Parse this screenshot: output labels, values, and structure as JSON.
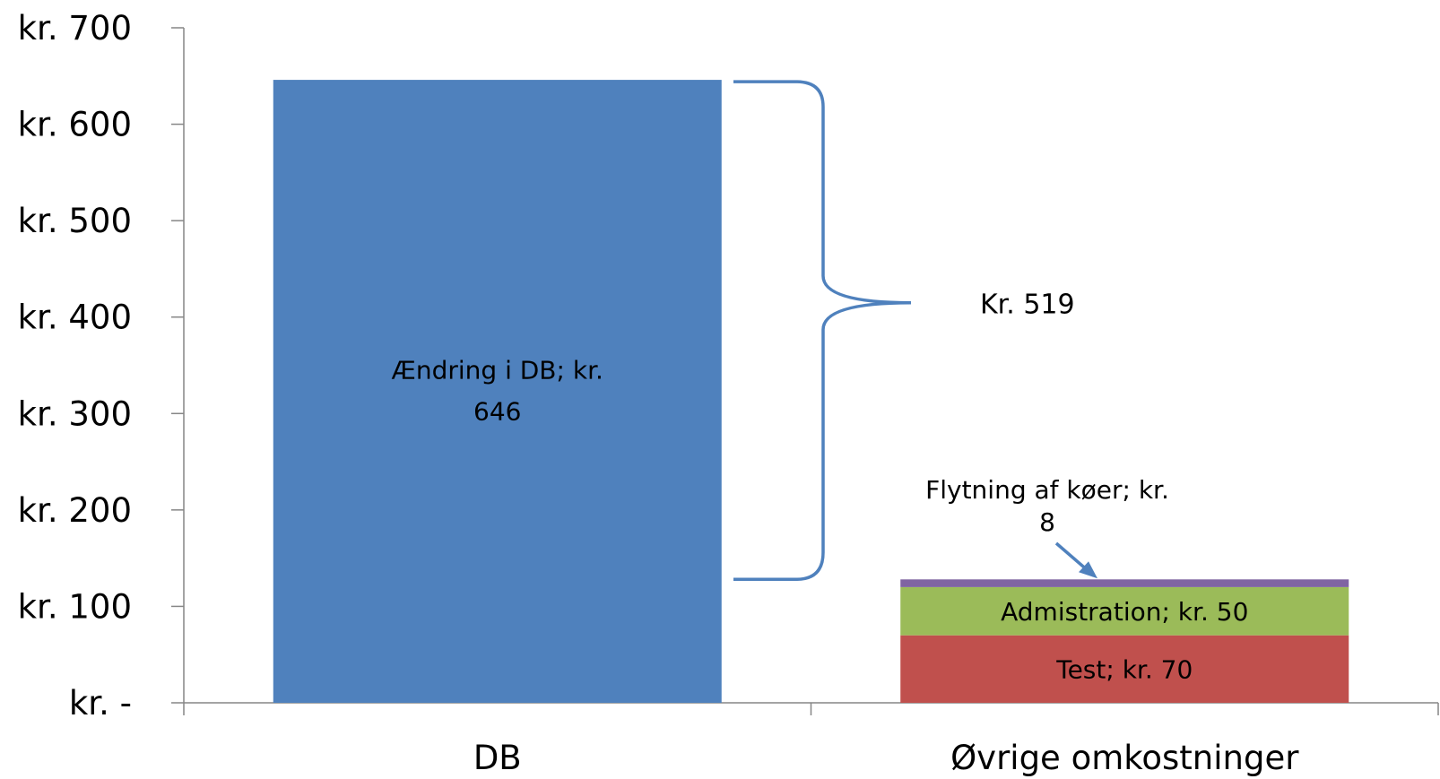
{
  "chart_data": {
    "type": "bar",
    "stacked": true,
    "categories": [
      "DB",
      "Øvrige omkostninger"
    ],
    "ylim": [
      0,
      700
    ],
    "y_ticks": [
      0,
      100,
      200,
      300,
      400,
      500,
      600,
      700
    ],
    "y_tick_labels": [
      "kr. -",
      "kr. 100",
      "kr. 200",
      "kr. 300",
      "kr. 400",
      "kr. 500",
      "kr. 600",
      "kr. 700"
    ],
    "grid": false,
    "legend": "none",
    "series": [
      {
        "category": "DB",
        "value": 646,
        "color": "#4F81BD",
        "label_lines": [
          "Ændring i DB;  kr.",
          "646"
        ]
      },
      {
        "category": "Øvrige omkostninger",
        "value": 70,
        "color": "#C0504D",
        "label_lines": [
          "Test;  kr. 70"
        ]
      },
      {
        "category": "Øvrige omkostninger",
        "value": 50,
        "color": "#9BBB59",
        "label_lines": [
          "Admistration;  kr. 50"
        ]
      },
      {
        "category": "Øvrige omkostninger",
        "value": 8,
        "color": "#8064A2",
        "label_lines": [
          "Flytning af køer;  kr.",
          "8"
        ]
      }
    ],
    "annotations": {
      "difference_label": "Kr. 519"
    }
  }
}
